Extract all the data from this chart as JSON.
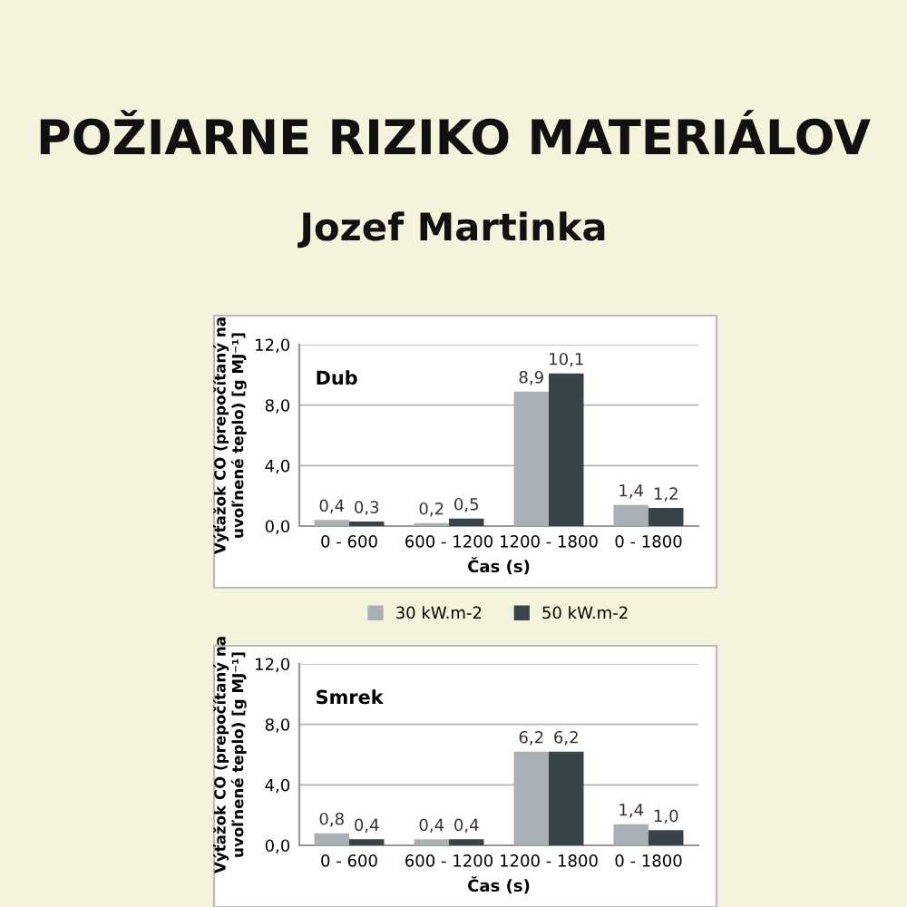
{
  "chart_data": [
    {
      "type": "bar",
      "title": "POŽIARNE RIZIKO MATERIÁLOV",
      "subtitle": "Jozef Martinka",
      "annotations": [
        "Dub"
      ],
      "xlabel": "Čas (s)",
      "ylabel": "Výťažok CO (prepočítaný na\nuvoľnené teplo) [g MJ⁻¹]",
      "categories": [
        "0 - 600",
        "600 - 1200",
        "1200 - 1800",
        "0 - 1800"
      ],
      "series": [
        {
          "name": "30 kW.m-2",
          "color": "#a9b0b3",
          "values": [
            0.4,
            0.2,
            8.9,
            1.4
          ],
          "value_labels": [
            "0,4",
            "0,2",
            "8,9",
            "1,4"
          ]
        },
        {
          "name": "50 kW.m-2",
          "color": "#3a4348",
          "values": [
            0.3,
            0.5,
            10.1,
            1.2
          ],
          "value_labels": [
            "0,3",
            "0,5",
            "10,1",
            "1,2"
          ]
        }
      ],
      "ylim": [
        0,
        12
      ],
      "yticks": [
        {
          "value": 0,
          "label": "0,0"
        },
        {
          "value": 4,
          "label": "4,0"
        },
        {
          "value": 8,
          "label": "8,0"
        },
        {
          "value": 12,
          "label": "12,0"
        }
      ],
      "grid": "y",
      "legend": "bottom"
    },
    {
      "type": "bar",
      "annotations": [
        "Smrek"
      ],
      "xlabel": "Čas (s)",
      "ylabel": "Výťažok CO (prepočítaný na\nuvoľnené teplo) [g MJ⁻¹]",
      "categories": [
        "0 - 600",
        "600 - 1200",
        "1200 - 1800",
        "0 - 1800"
      ],
      "series": [
        {
          "color": "#a9b0b3",
          "values": [
            0.8,
            0.4,
            6.2,
            1.4
          ],
          "value_labels": [
            "0,8",
            "0,4",
            "6,2",
            "1,4"
          ]
        },
        {
          "color": "#3a4348",
          "values": [
            0.4,
            0.4,
            6.2,
            1.0
          ],
          "value_labels": [
            "0,4",
            "0,4",
            "6,2",
            "1,0"
          ]
        }
      ],
      "ylim": [
        0,
        12
      ],
      "yticks": [
        {
          "value": 0,
          "label": "0,0"
        },
        {
          "value": 4,
          "label": "4,0"
        },
        {
          "value": 8,
          "label": "8,0"
        },
        {
          "value": 12,
          "label": "12,0"
        }
      ],
      "grid": "y"
    }
  ]
}
